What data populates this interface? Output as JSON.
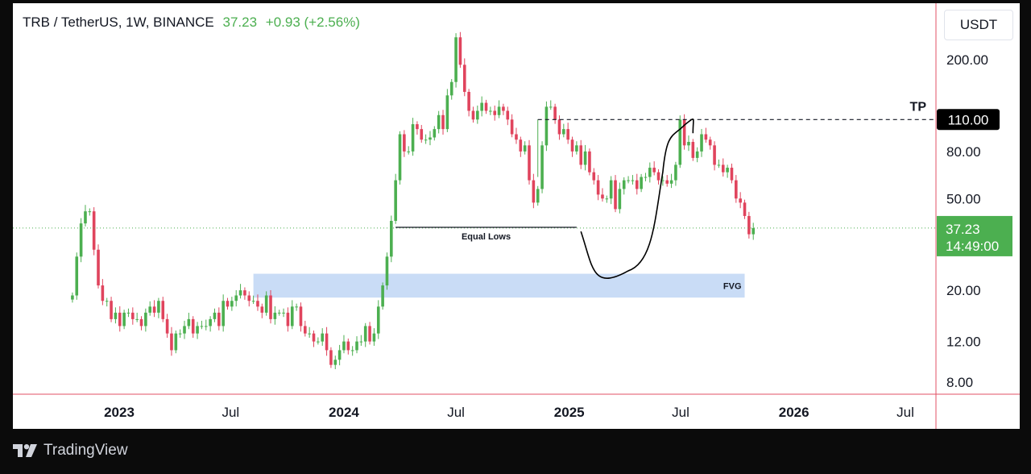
{
  "header": {
    "symbol": "TRB / TetherUS, 1W, BINANCE",
    "price": "37.23",
    "change": "+0.93 (+2.56%)"
  },
  "currency_button": "USDT",
  "brand": "TradingView",
  "colors": {
    "up": "#4caf50",
    "down": "#e0445d",
    "fvg": "#c9dcf6",
    "last_price": "#4caf50",
    "separator": "#e05064",
    "tp_box": "#000000"
  },
  "chart_data": {
    "type": "candlestick",
    "interval": "1W",
    "y_scale": "log",
    "ylim": [
      6.8,
      330
    ],
    "y_ticks": [
      "200.00",
      "80.00",
      "50.00",
      "20.00",
      "12.00",
      "8.00"
    ],
    "x_ticks": [
      {
        "label": "2023",
        "date": "2023-01-01",
        "bold": true
      },
      {
        "label": "Jul",
        "date": "2023-07-01",
        "bold": false
      },
      {
        "label": "2024",
        "date": "2024-01-01",
        "bold": true
      },
      {
        "label": "Jul",
        "date": "2024-07-01",
        "bold": false
      },
      {
        "label": "2025",
        "date": "2025-01-01",
        "bold": true
      },
      {
        "label": "Jul",
        "date": "2025-07-01",
        "bold": false
      },
      {
        "label": "2026",
        "date": "2026-01-01",
        "bold": true
      },
      {
        "label": "Jul",
        "date": "2026-07-01",
        "bold": false
      }
    ],
    "last_price": {
      "label": "37.23",
      "countdown": "14:49:00",
      "value": 37.23
    },
    "annotations": {
      "tp": {
        "label": "TP",
        "price_label": "110.00",
        "value": 110,
        "from_date": "2024-11-11"
      },
      "equal_lows": {
        "label": "Equal Lows",
        "value": 37.5,
        "from_date": "2024-03-25",
        "to_date": "2025-01-13"
      },
      "fvg": {
        "label": "FVG",
        "low": 18.6,
        "high": 23.6,
        "from_date": "2023-08-07",
        "to_date": "2025-10-13"
      },
      "projection": [
        {
          "date": "2025-01-20",
          "value": 36
        },
        {
          "date": "2025-04-07",
          "value": 24.3
        },
        {
          "date": "2025-06-02",
          "value": 65
        },
        {
          "date": "2025-07-07",
          "value": 104
        },
        {
          "date": "2025-07-21",
          "value": 96
        }
      ]
    },
    "start_date": "2022-10-17",
    "closes": [
      19,
      28,
      39,
      44,
      44,
      30,
      21,
      18,
      18,
      15,
      16,
      14,
      16,
      16,
      15,
      15,
      14,
      16,
      17,
      16,
      18,
      15,
      13,
      11,
      13,
      13,
      14,
      15,
      13,
      14,
      14,
      14,
      15,
      16,
      14,
      18,
      17,
      18,
      19,
      20,
      19,
      18,
      18,
      17,
      16,
      19,
      15,
      16,
      16,
      16,
      14,
      17,
      17,
      14,
      13,
      13,
      12,
      12,
      13,
      11,
      9.5,
      10,
      11,
      12,
      11,
      11,
      12,
      12,
      14,
      12,
      13,
      17,
      21,
      28,
      40,
      60,
      95,
      80,
      80,
      105,
      100,
      90,
      90,
      92,
      100,
      115,
      100,
      140,
      160,
      250,
      190,
      145,
      120,
      110,
      120,
      130,
      120,
      120,
      115,
      125,
      120,
      110,
      95,
      90,
      80,
      85,
      60,
      48,
      55,
      85,
      125,
      125,
      110,
      95,
      100,
      90,
      80,
      85,
      70,
      80,
      65,
      60,
      52,
      50,
      50,
      60,
      45,
      55,
      60,
      60,
      60,
      55,
      62,
      62,
      68,
      65,
      60,
      60,
      58,
      60,
      70,
      110,
      85,
      88,
      75,
      80,
      95,
      90,
      85,
      70,
      70,
      65,
      68,
      60,
      50,
      48,
      42,
      35,
      37.23
    ]
  }
}
